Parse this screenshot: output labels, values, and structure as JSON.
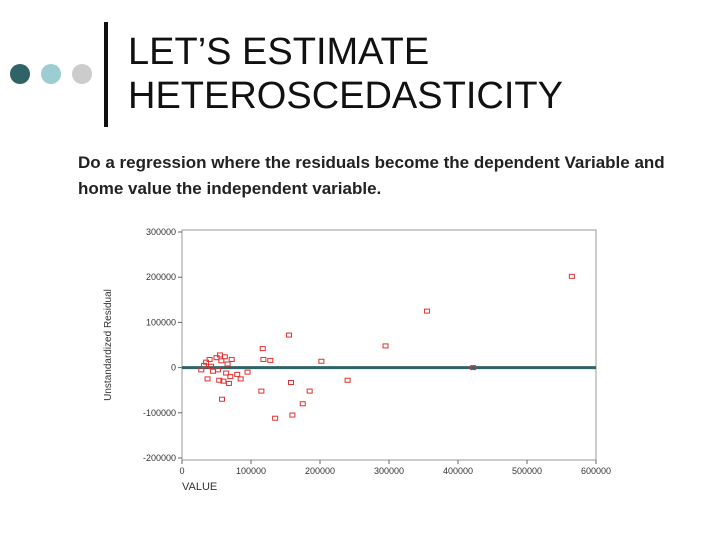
{
  "slide": {
    "title_line1": "LET’S ESTIMATE",
    "title_line2": "HETEROSCEDASTICITY",
    "body": "Do a regression where the residuals become the dependent Variable and home value the independent variable."
  },
  "chart_data": {
    "type": "scatter",
    "xlabel": "VALUE",
    "ylabel": "Unstandardized Residual",
    "xlim": [
      0,
      600000
    ],
    "ylim": [
      -200000,
      300000
    ],
    "x_ticks": [
      0,
      100000,
      200000,
      300000,
      400000,
      500000,
      600000
    ],
    "y_ticks": [
      300000,
      200000,
      100000,
      0,
      -100000,
      -200000
    ],
    "x_tick_labels": [
      "0",
      "100000",
      "200000",
      "300000",
      "400000",
      "500000",
      "600000"
    ],
    "y_tick_labels": [
      "300000",
      "200000",
      "100000",
      "0",
      "-100000",
      "-200000"
    ],
    "grid": false,
    "marker_color": "#e03030",
    "reference_line": {
      "y": 0,
      "color": "#2f6367"
    },
    "points": [
      {
        "x": 28000,
        "y": -5000
      },
      {
        "x": 32000,
        "y": 5000
      },
      {
        "x": 35000,
        "y": 12000
      },
      {
        "x": 37000,
        "y": -25000
      },
      {
        "x": 40000,
        "y": 18000
      },
      {
        "x": 42000,
        "y": 3000
      },
      {
        "x": 45000,
        "y": -8000
      },
      {
        "x": 50000,
        "y": 22000
      },
      {
        "x": 52000,
        "y": -5000
      },
      {
        "x": 54000,
        "y": -28000
      },
      {
        "x": 55000,
        "y": 28000
      },
      {
        "x": 57000,
        "y": 15000
      },
      {
        "x": 58000,
        "y": -70000
      },
      {
        "x": 60000,
        "y": -30000
      },
      {
        "x": 62000,
        "y": 24000
      },
      {
        "x": 64000,
        "y": -12000
      },
      {
        "x": 66000,
        "y": 8000
      },
      {
        "x": 68000,
        "y": -35000
      },
      {
        "x": 70000,
        "y": -20000
      },
      {
        "x": 72000,
        "y": 18000
      },
      {
        "x": 80000,
        "y": -15000
      },
      {
        "x": 85000,
        "y": -25000
      },
      {
        "x": 95000,
        "y": -10000
      },
      {
        "x": 115000,
        "y": -52000
      },
      {
        "x": 117000,
        "y": 42000
      },
      {
        "x": 118000,
        "y": 18000
      },
      {
        "x": 128000,
        "y": 16000
      },
      {
        "x": 135000,
        "y": -112000
      },
      {
        "x": 155000,
        "y": 72000
      },
      {
        "x": 158000,
        "y": -33000
      },
      {
        "x": 160000,
        "y": -105000
      },
      {
        "x": 175000,
        "y": -80000
      },
      {
        "x": 185000,
        "y": -52000
      },
      {
        "x": 202000,
        "y": 14000
      },
      {
        "x": 240000,
        "y": -28000
      },
      {
        "x": 295000,
        "y": 48000
      },
      {
        "x": 355000,
        "y": 125000
      },
      {
        "x": 422000,
        "y": 0
      },
      {
        "x": 565000,
        "y": 202000
      }
    ]
  }
}
